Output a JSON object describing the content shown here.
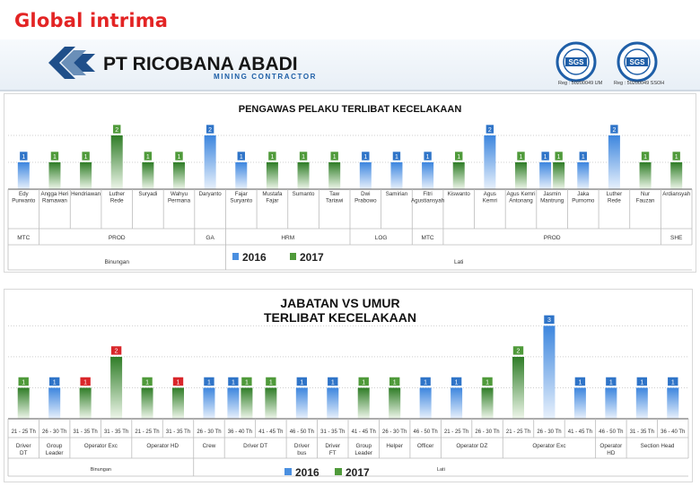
{
  "header": {
    "brand": "Global intrima",
    "company": "PT RICOBANA ABADI",
    "company_sub": "MINING CONTRACTOR",
    "seal_left_reg": "Reg : 50200049 UM",
    "seal_right_reg": "Reg : 50200049 SSOH",
    "seal_text": "SGS"
  },
  "colors": {
    "s2016": "#4a8fe0",
    "s2017": "#4f9a3a",
    "red": "#d9262a",
    "title": "#111111"
  },
  "chart_data": [
    {
      "type": "bar",
      "title": "PENGAWAS PELAKU TERLIBAT KECELAKAAN",
      "legend": [
        "2016",
        "2017"
      ],
      "legend_position": "bottom",
      "categories": [
        "Edy Purwanto",
        "Angga Heri Ramawan",
        "Hendriawan",
        "Luther Rede",
        "Suryadi",
        "Wahyu Permana",
        "Daryanto",
        "Fajar Suryanto",
        "Mustafa Fajar",
        "Sumanto",
        "Taw Tariawi",
        "Dwi Prabowo",
        "Samirian",
        "Fitri Agustiansyah",
        "Kiswanto",
        "Agus Kemri",
        "Agus Kemri Antonang",
        "Jasmin Mantrung",
        "Jaka Purnomo",
        "Luther Rede",
        "Nur Fauzan",
        "Ardiansyah"
      ],
      "bars": [
        {
          "category": 0,
          "series": "2016",
          "value": 1
        },
        {
          "category": 1,
          "series": "2017",
          "value": 1
        },
        {
          "category": 2,
          "series": "2017",
          "value": 1
        },
        {
          "category": 3,
          "series": "2017",
          "value": 2
        },
        {
          "category": 4,
          "series": "2017",
          "value": 1
        },
        {
          "category": 5,
          "series": "2017",
          "value": 1
        },
        {
          "category": 6,
          "series": "2016",
          "value": 2
        },
        {
          "category": 7,
          "series": "2016",
          "value": 1
        },
        {
          "category": 8,
          "series": "2017",
          "value": 1
        },
        {
          "category": 9,
          "series": "2017",
          "value": 1
        },
        {
          "category": 10,
          "series": "2017",
          "value": 1
        },
        {
          "category": 11,
          "series": "2016",
          "value": 1
        },
        {
          "category": 12,
          "series": "2016",
          "value": 1
        },
        {
          "category": 13,
          "series": "2016",
          "value": 1
        },
        {
          "category": 14,
          "series": "2017",
          "value": 1
        },
        {
          "category": 15,
          "series": "2016",
          "value": 2
        },
        {
          "category": 16,
          "series": "2017",
          "value": 1
        },
        {
          "category": 17,
          "series": "2016",
          "value": 1
        },
        {
          "category": 17,
          "series": "2017",
          "value": 1
        },
        {
          "category": 18,
          "series": "2016",
          "value": 1
        },
        {
          "category": 19,
          "series": "2016",
          "value": 2
        },
        {
          "category": 20,
          "series": "2017",
          "value": 1
        },
        {
          "category": 21,
          "series": "2017",
          "value": 1
        }
      ],
      "groups": [
        {
          "label": "MTC",
          "from": 0,
          "to": 0
        },
        {
          "label": "PROD",
          "from": 1,
          "to": 5
        },
        {
          "label": "GA",
          "from": 6,
          "to": 6
        },
        {
          "label": "HRM",
          "from": 7,
          "to": 10
        },
        {
          "label": "LOG",
          "from": 11,
          "to": 12
        },
        {
          "label": "MTC",
          "from": 13,
          "to": 13
        },
        {
          "label": "PROD",
          "from": 14,
          "to": 20
        },
        {
          "label": "SHE",
          "from": 21,
          "to": 21
        }
      ],
      "sites": [
        {
          "label": "Binungan",
          "from": 0,
          "to": 6
        },
        {
          "label": "Lati",
          "from": 7,
          "to": 21
        }
      ],
      "ylim": [
        0,
        2.6
      ]
    },
    {
      "type": "bar",
      "title": [
        "JABATAN VS UMUR",
        "TERLIBAT KECELAKAAN"
      ],
      "legend": [
        "2016",
        "2017"
      ],
      "legend_position": "bottom",
      "categories": [
        "21 - 25 Th",
        "26 - 30 Th",
        "31 - 35 Th",
        "31 - 35 Th",
        "21 - 25 Th",
        "31 - 35 Th",
        "26 - 30 Th",
        "36 - 40 Th",
        "41 - 45 Th",
        "46 - 50 Th",
        "31 - 35 Th",
        "41 - 45 Th",
        "26 - 30 Th",
        "46 - 50 Th",
        "21 - 25 Th",
        "26 - 30 Th",
        "21 - 25 Th",
        "26 - 30 Th",
        "41 - 45 Th",
        "46 - 50 Th",
        "31 - 35 Th",
        "36 - 40 Th"
      ],
      "bars": [
        {
          "category": 0,
          "series": "2017",
          "value": 1,
          "label_color": "green"
        },
        {
          "category": 1,
          "series": "2016",
          "value": 1,
          "label_color": "blue"
        },
        {
          "category": 2,
          "series": "2017",
          "value": 1,
          "label_color": "red"
        },
        {
          "category": 3,
          "series": "2017",
          "value": 2,
          "label_color": "red"
        },
        {
          "category": 4,
          "series": "2017",
          "value": 1,
          "label_color": "green"
        },
        {
          "category": 5,
          "series": "2017",
          "value": 1,
          "label_color": "red"
        },
        {
          "category": 6,
          "series": "2016",
          "value": 1,
          "label_color": "blue"
        },
        {
          "category": 7,
          "series": "2016",
          "value": 1,
          "label_color": "blue"
        },
        {
          "category": 7,
          "series": "2017",
          "value": 1,
          "label_color": "green"
        },
        {
          "category": 8,
          "series": "2017",
          "value": 1,
          "label_color": "green"
        },
        {
          "category": 9,
          "series": "2016",
          "value": 1,
          "label_color": "blue"
        },
        {
          "category": 10,
          "series": "2016",
          "value": 1,
          "label_color": "blue"
        },
        {
          "category": 11,
          "series": "2017",
          "value": 1,
          "label_color": "green"
        },
        {
          "category": 12,
          "series": "2017",
          "value": 1,
          "label_color": "green"
        },
        {
          "category": 13,
          "series": "2016",
          "value": 1,
          "label_color": "blue"
        },
        {
          "category": 14,
          "series": "2016",
          "value": 1,
          "label_color": "blue"
        },
        {
          "category": 15,
          "series": "2017",
          "value": 1,
          "label_color": "green"
        },
        {
          "category": 16,
          "series": "2017",
          "value": 2,
          "label_color": "green"
        },
        {
          "category": 17,
          "series": "2016",
          "value": 3,
          "label_color": "blue"
        },
        {
          "category": 18,
          "series": "2016",
          "value": 1,
          "label_color": "blue"
        },
        {
          "category": 19,
          "series": "2016",
          "value": 1,
          "label_color": "blue"
        },
        {
          "category": 20,
          "series": "2016",
          "value": 1,
          "label_color": "blue"
        },
        {
          "category": 21,
          "series": "2016",
          "value": 1,
          "label_color": "blue"
        }
      ],
      "groups": [
        {
          "label": "Driver DT",
          "from": 0,
          "to": 0
        },
        {
          "label": "Group Leader",
          "from": 1,
          "to": 1
        },
        {
          "label": "Operator Exc",
          "from": 2,
          "to": 3
        },
        {
          "label": "Operator HD",
          "from": 4,
          "to": 5
        },
        {
          "label": "Crew",
          "from": 6,
          "to": 6
        },
        {
          "label": "Driver DT",
          "from": 7,
          "to": 8
        },
        {
          "label": "Driver bus",
          "from": 9,
          "to": 9
        },
        {
          "label": "Driver FT",
          "from": 10,
          "to": 10
        },
        {
          "label": "Group Leader",
          "from": 11,
          "to": 11
        },
        {
          "label": "Helper",
          "from": 12,
          "to": 12
        },
        {
          "label": "Officer",
          "from": 13,
          "to": 13
        },
        {
          "label": "Operator DZ",
          "from": 14,
          "to": 15
        },
        {
          "label": "Operator Exc",
          "from": 16,
          "to": 18
        },
        {
          "label": "Operator HD",
          "from": 19,
          "to": 19
        },
        {
          "label": "Section Head",
          "from": 20,
          "to": 21
        }
      ],
      "sites": [
        {
          "label": "Binungan",
          "from": 0,
          "to": 5
        },
        {
          "label": "Lati",
          "from": 6,
          "to": 21
        }
      ],
      "ylim": [
        0,
        3.3
      ]
    }
  ]
}
